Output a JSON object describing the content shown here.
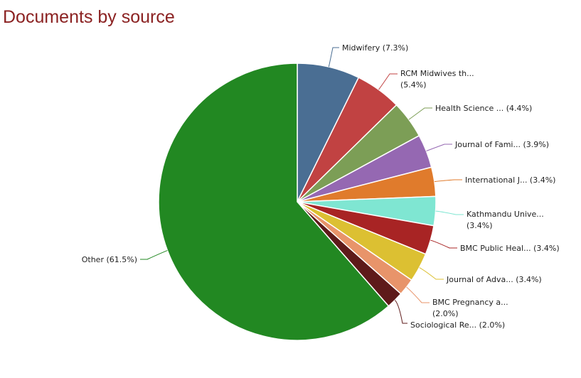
{
  "chart_data": {
    "type": "pie",
    "title": "Documents by source",
    "slices": [
      {
        "label": "Midwifery (7.3%)",
        "value": 7.3,
        "color": "#4a6e93"
      },
      {
        "label": [
          "RCM Midwives th...",
          "(5.4%)"
        ],
        "value": 5.4,
        "color": "#c14242"
      },
      {
        "label": "Health Science ... (4.4%)",
        "value": 4.4,
        "color": "#7c9e56"
      },
      {
        "label": "Journal of Fami... (3.9%)",
        "value": 3.9,
        "color": "#9568b2"
      },
      {
        "label": "International J... (3.4%)",
        "value": 3.4,
        "color": "#e07b2c"
      },
      {
        "label": [
          "Kathmandu Unive...",
          "(3.4%)"
        ],
        "value": 3.4,
        "color": "#7fe6d2"
      },
      {
        "label": "BMC Public Heal... (3.4%)",
        "value": 3.4,
        "color": "#a82424"
      },
      {
        "label": "Journal of Adva... (3.4%)",
        "value": 3.4,
        "color": "#dcc032"
      },
      {
        "label": [
          "BMC Pregnancy a...",
          "(2.0%)"
        ],
        "value": 2.0,
        "color": "#e8946a"
      },
      {
        "label": "Sociological Re... (2.0%)",
        "value": 2.0,
        "color": "#5e1a1a"
      },
      {
        "label": "Other (61.5%)",
        "value": 61.5,
        "color": "#228822"
      }
    ]
  }
}
